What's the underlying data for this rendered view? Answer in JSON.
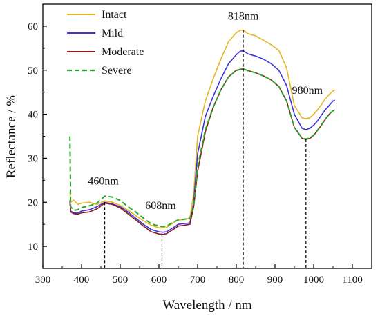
{
  "chart_data": {
    "type": "line",
    "title": "",
    "xlabel": "Wavelength / nm",
    "ylabel": "Reflectance / %",
    "xlim": [
      300,
      1150
    ],
    "ylim": [
      5,
      65
    ],
    "xticks": [
      300,
      400,
      500,
      600,
      700,
      800,
      900,
      1000,
      1100
    ],
    "yticks": [
      10,
      20,
      30,
      40,
      50,
      60
    ],
    "grid": false,
    "legend_position": "top-left",
    "series": [
      {
        "name": "Intact",
        "color": "#e6b51f",
        "dash": "solid",
        "x": [
          370,
          372,
          380,
          390,
          400,
          420,
          440,
          460,
          480,
          500,
          520,
          540,
          560,
          580,
          600,
          610,
          620,
          640,
          650,
          660,
          680,
          690,
          700,
          720,
          740,
          760,
          780,
          800,
          810,
          818,
          830,
          850,
          870,
          890,
          910,
          930,
          950,
          970,
          980,
          990,
          1000,
          1010,
          1020,
          1030,
          1040,
          1050,
          1055
        ],
        "y": [
          22.5,
          20,
          20.5,
          19.5,
          19.8,
          20,
          19.5,
          20.3,
          20,
          19.3,
          18.2,
          17,
          15.8,
          14.8,
          14.2,
          14.2,
          14.3,
          15.5,
          16,
          16,
          16.4,
          22,
          35,
          43,
          48,
          52.5,
          56.5,
          58.5,
          59.1,
          59.1,
          58.3,
          57.8,
          56.8,
          55.8,
          54.5,
          50.5,
          42,
          39.2,
          39,
          39.2,
          40,
          41,
          42.2,
          43.5,
          44.5,
          45.3,
          45.5
        ]
      },
      {
        "name": "Mild",
        "color": "#3b33d9",
        "dash": "solid",
        "x": [
          370,
          372,
          380,
          390,
          400,
          420,
          440,
          460,
          480,
          500,
          520,
          540,
          560,
          580,
          600,
          610,
          620,
          640,
          650,
          660,
          680,
          690,
          700,
          720,
          740,
          760,
          780,
          800,
          810,
          818,
          830,
          850,
          870,
          890,
          910,
          930,
          950,
          970,
          980,
          990,
          1000,
          1010,
          1020,
          1030,
          1040,
          1050,
          1055
        ],
        "y": [
          20.5,
          18,
          17.6,
          17.5,
          18,
          18.3,
          19,
          20,
          19.6,
          19,
          17.8,
          16.4,
          15,
          13.8,
          13.3,
          13.2,
          13.3,
          14.4,
          15,
          15.1,
          15.3,
          20,
          31,
          39.5,
          44,
          48,
          51.5,
          53.5,
          54.3,
          54.4,
          53.7,
          53.2,
          52.5,
          51.5,
          50,
          46.5,
          40,
          36.8,
          36.5,
          36.8,
          37.5,
          38.5,
          39.8,
          41,
          42,
          43,
          43.2
        ]
      },
      {
        "name": "Moderate",
        "color": "#8b1a1a",
        "dash": "solid",
        "x": [
          370,
          372,
          380,
          390,
          400,
          420,
          440,
          460,
          480,
          500,
          520,
          540,
          560,
          580,
          600,
          610,
          620,
          640,
          650,
          660,
          680,
          690,
          700,
          720,
          740,
          760,
          780,
          800,
          810,
          818,
          830,
          850,
          870,
          890,
          910,
          930,
          950,
          970,
          980,
          990,
          1000,
          1010,
          1020,
          1030,
          1040,
          1050,
          1055
        ],
        "y": [
          20,
          17.8,
          17.4,
          17.3,
          17.6,
          17.8,
          18.5,
          19.8,
          19.5,
          18.7,
          17.4,
          16,
          14.6,
          13.3,
          12.8,
          12.7,
          12.9,
          14,
          14.6,
          14.7,
          15,
          19,
          27,
          36,
          41.5,
          45.5,
          48.5,
          50,
          50.2,
          50.3,
          49.9,
          49.4,
          48.7,
          47.8,
          46.3,
          43,
          37,
          34.5,
          34.3,
          34.5,
          35.2,
          36.3,
          37.5,
          38.8,
          40,
          40.8,
          41
        ]
      },
      {
        "name": "Severe",
        "color": "#2aa82a",
        "dash": "dashed",
        "x": [
          370,
          372,
          380,
          390,
          400,
          420,
          440,
          460,
          480,
          500,
          520,
          540,
          560,
          580,
          600,
          610,
          620,
          640,
          650,
          660,
          680,
          690,
          700,
          720,
          740,
          760,
          780,
          800,
          810,
          818,
          830,
          850,
          870,
          890,
          910,
          930,
          950,
          970,
          980,
          990,
          1000,
          1010,
          1020,
          1030,
          1040,
          1050,
          1055
        ],
        "y": [
          35,
          19,
          18.2,
          18.3,
          18.8,
          19.2,
          19.8,
          21.4,
          21.2,
          20.4,
          19,
          17.8,
          16.4,
          15.1,
          14.6,
          14.5,
          14.6,
          15.6,
          16,
          16.1,
          16.3,
          19,
          28,
          36.5,
          41.5,
          45.5,
          48.5,
          49.9,
          50.2,
          50.3,
          49.9,
          49.4,
          48.7,
          47.8,
          46.3,
          43,
          37,
          34.6,
          34.4,
          34.6,
          35.3,
          36.4,
          37.6,
          38.9,
          40,
          40.8,
          41
        ]
      }
    ],
    "annotations": [
      {
        "text": "460nm",
        "x": 460,
        "y": 20.0
      },
      {
        "text": "608nm",
        "x": 608,
        "y": 12.8
      },
      {
        "text": "818nm",
        "x": 818,
        "y": 59.1
      },
      {
        "text": "980nm",
        "x": 980,
        "y": 34.3
      }
    ]
  }
}
